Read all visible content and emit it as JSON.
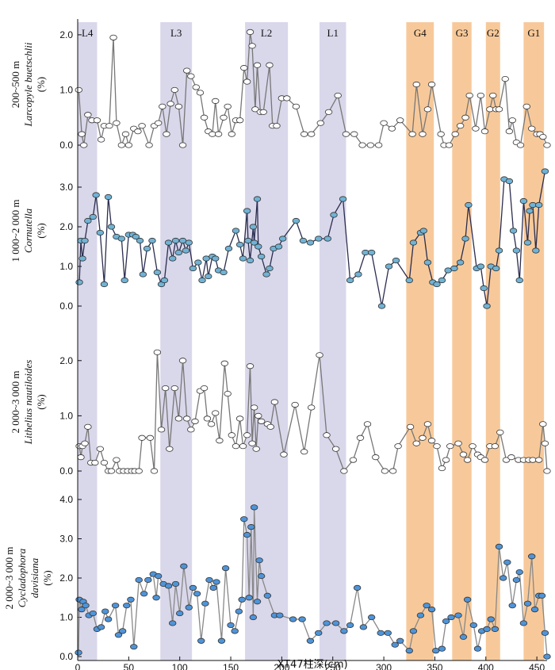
{
  "bands": [
    {
      "label": "L4",
      "x": [
        0,
        19
      ],
      "color": "#d9d7ea"
    },
    {
      "label": "L3",
      "x": [
        81,
        112
      ],
      "color": "#d9d7ea"
    },
    {
      "label": "L2",
      "x": [
        164,
        206
      ],
      "color": "#d9d7ea"
    },
    {
      "label": "L1",
      "x": [
        237,
        263
      ],
      "color": "#d9d7ea"
    },
    {
      "label": "G4",
      "x": [
        322,
        349
      ],
      "color": "#f7c99a"
    },
    {
      "label": "G3",
      "x": [
        367,
        386
      ],
      "color": "#f7c99a"
    },
    {
      "label": "G2",
      "x": [
        400,
        414
      ],
      "color": "#f7c99a"
    },
    {
      "label": "G1",
      "x": [
        437,
        457
      ],
      "color": "#f7c99a"
    }
  ],
  "chart_data": [
    {
      "type": "line",
      "ylabel": [
        "200~500 m",
        "Larcopyle buetschlii",
        "(%)"
      ],
      "xlim": [
        0,
        460
      ],
      "ylim": [
        -0.1,
        2.3
      ],
      "yticks": [
        {
          "value": 0,
          "label": "0.0"
        },
        {
          "value": 1,
          "label": "1.0"
        },
        {
          "value": 2,
          "label": "2.0"
        }
      ],
      "x": [
        1,
        4,
        6,
        10,
        14,
        19,
        23,
        26,
        31,
        35,
        38,
        43,
        47,
        50,
        55,
        59,
        63,
        70,
        75,
        79,
        83,
        87,
        91,
        95,
        99,
        103,
        107,
        111,
        116,
        120,
        124,
        128,
        132,
        135,
        138,
        143,
        147,
        151,
        155,
        159,
        163,
        166,
        169,
        171,
        174,
        176,
        179,
        182,
        188,
        191,
        195,
        200,
        205,
        214,
        222,
        229,
        238,
        246,
        255,
        263,
        271,
        279,
        287,
        295,
        300,
        308,
        316,
        328,
        332,
        338,
        343,
        347,
        356,
        359,
        364,
        370,
        375,
        380,
        384,
        390,
        395,
        399,
        404,
        407,
        410,
        413,
        419,
        423,
        426,
        430,
        434,
        440,
        445,
        450,
        453,
        456,
        460
      ],
      "series": [
        {
          "color": "#777777",
          "marker": "#ffffff",
          "values": [
            1.0,
            0.2,
            0,
            0.55,
            0.45,
            0.45,
            0.1,
            0.35,
            0.35,
            1.95,
            0.4,
            0,
            0.2,
            0,
            0.3,
            0.25,
            0.35,
            0,
            0.35,
            0.4,
            0.7,
            0.2,
            0.75,
            1.0,
            0.7,
            0,
            1.35,
            1.25,
            1.05,
            0.95,
            0.5,
            0.25,
            0.2,
            0.8,
            0.2,
            0.5,
            0.7,
            0.2,
            0.45,
            0.45,
            1.4,
            1.15,
            2.05,
            1.8,
            0.65,
            1.45,
            0.6,
            0.6,
            1.45,
            0.35,
            0.35,
            0.85,
            0.85,
            0.7,
            0.2,
            0.2,
            0.4,
            0.6,
            0.9,
            0.2,
            0.2,
            0,
            0,
            0,
            0.4,
            0.3,
            0.45,
            0.2,
            1.1,
            0.2,
            0.65,
            1.1,
            0.2,
            0,
            0,
            0.2,
            0.35,
            0.5,
            0.9,
            0.3,
            0.9,
            0.25,
            0.65,
            0.9,
            0.65,
            0.65,
            1.2,
            0.25,
            0.45,
            0.05,
            0,
            0.7,
            0.3,
            0.2,
            0.2,
            0.15,
            0
          ]
        }
      ]
    },
    {
      "type": "line",
      "ylabel": [
        "1 000~2 000 m",
        "Cornutella",
        "(%)"
      ],
      "xlim": [
        0,
        460
      ],
      "ylim": [
        -0.1,
        3.9
      ],
      "yticks": [
        {
          "value": 0,
          "label": "0.0"
        },
        {
          "value": 1,
          "label": "1.0"
        },
        {
          "value": 2,
          "label": "2.0"
        },
        {
          "value": 3,
          "label": "3.0"
        }
      ],
      "x": [
        1.6,
        3.1,
        4.7,
        7,
        10,
        15,
        18,
        22,
        26,
        30,
        33,
        38,
        43,
        46,
        50,
        54,
        57,
        61,
        64,
        68,
        73,
        78,
        82,
        85,
        89,
        93,
        96,
        99,
        103,
        106,
        109,
        113,
        118,
        122,
        126,
        128,
        132,
        135,
        138,
        143,
        148,
        155,
        159,
        162,
        166,
        167,
        169,
        172,
        173,
        176,
        177,
        180,
        185,
        188,
        192,
        197,
        201,
        214,
        221,
        228,
        236,
        245,
        251,
        260,
        267,
        275,
        282,
        288,
        298,
        305,
        312,
        325,
        329,
        336,
        339,
        343,
        348,
        352,
        357,
        363,
        369,
        375,
        380,
        383,
        391,
        395,
        398,
        401,
        405,
        410,
        413,
        418,
        423,
        427,
        430,
        433,
        437,
        441,
        443,
        446,
        449,
        452,
        458
      ],
      "series": [
        {
          "color": "#2b2d4f",
          "marker": "#6fb3d6",
          "values": [
            0.6,
            1.65,
            1.2,
            1.65,
            2.15,
            2.25,
            2.8,
            1.85,
            0.55,
            2.75,
            2.0,
            1.75,
            1.7,
            0.65,
            1.8,
            1.8,
            1.75,
            1.65,
            0.8,
            1.45,
            1.65,
            0.85,
            0.55,
            0.65,
            1.6,
            1.2,
            1.65,
            1.35,
            1.65,
            1.4,
            1.6,
            0.95,
            1.1,
            0.65,
            1.2,
            0.75,
            1.25,
            1.2,
            0.9,
            0.85,
            1.45,
            1.9,
            1.55,
            1.2,
            2.4,
            1.65,
            1.15,
            2.0,
            1.6,
            2.7,
            1.5,
            1.25,
            0.8,
            0.95,
            1.45,
            1.5,
            1.7,
            2.15,
            1.65,
            1.6,
            1.7,
            1.7,
            2.3,
            2.7,
            0.65,
            0.8,
            1.35,
            1.35,
            0.0,
            1.0,
            1.15,
            0.65,
            1.6,
            1.85,
            1.9,
            1.1,
            0.6,
            0.55,
            0.65,
            0.9,
            0.95,
            1.1,
            1.7,
            2.55,
            0.95,
            1.0,
            0.45,
            0.0,
            1.0,
            0.95,
            1.4,
            3.2,
            3.15,
            1.9,
            1.4,
            0.65,
            2.65,
            1.6,
            2.4,
            2.55,
            1.4,
            2.55,
            3.4
          ]
        }
      ]
    },
    {
      "type": "line",
      "ylabel": [
        "2 000~3 000 m",
        "Lithelius nautiloides",
        "(%)"
      ],
      "xlim": [
        0,
        460
      ],
      "ylim": [
        -0.1,
        2.6
      ],
      "yticks": [
        {
          "value": 0,
          "label": "0.0"
        },
        {
          "value": 1,
          "label": "1.0"
        },
        {
          "value": 2,
          "label": "2.0"
        }
      ],
      "x": [
        1.6,
        3.1,
        4.7,
        7,
        10,
        13,
        17,
        22,
        26,
        30,
        33,
        38,
        41,
        45,
        49,
        53,
        56,
        60,
        63,
        71,
        75,
        78,
        82,
        86,
        90,
        95,
        99,
        103,
        107,
        111,
        115,
        120,
        124,
        127,
        131,
        135,
        139,
        144,
        147,
        151,
        155,
        159,
        162,
        166,
        169,
        171,
        173,
        175,
        177,
        180,
        186,
        189,
        193,
        202,
        213,
        222,
        229,
        237,
        244,
        253,
        261,
        270,
        277,
        284,
        292,
        301,
        309,
        314,
        326,
        332,
        338,
        343,
        347,
        352,
        357,
        361,
        365,
        373,
        378,
        382,
        387,
        392,
        395,
        399,
        404,
        409,
        414,
        420,
        425,
        432,
        437,
        442,
        446,
        452,
        456,
        458,
        460
      ],
      "series": [
        {
          "color": "#777777",
          "marker": "#ffffff",
          "values": [
            0.45,
            0.25,
            0.45,
            0.5,
            0.8,
            0.15,
            0.15,
            0.4,
            0.15,
            0,
            0,
            0.2,
            0,
            0,
            0,
            0,
            0,
            0,
            0.6,
            0.6,
            0,
            2.15,
            0.75,
            1.5,
            0.4,
            1.5,
            0.95,
            2.0,
            0.95,
            0.75,
            0.9,
            1.45,
            1.5,
            0.95,
            0.85,
            1.05,
            0.55,
            1.95,
            1.4,
            0.65,
            0.45,
            0.95,
            0.45,
            0.65,
            1.9,
            0.5,
            1.15,
            0.4,
            1.0,
            0.9,
            0.85,
            0.8,
            1.25,
            0.3,
            1.2,
            0.35,
            1.15,
            2.1,
            0.65,
            0.4,
            0,
            0.2,
            0.6,
            0.85,
            0.25,
            0,
            0,
            0.45,
            0.8,
            0.5,
            0.6,
            0.85,
            0.55,
            0.45,
            0.05,
            0.2,
            0.45,
            0.5,
            0.3,
            0.2,
            0.45,
            0.3,
            0.25,
            0.2,
            0.45,
            0.45,
            0.7,
            0.2,
            0.25,
            0.2,
            0.2,
            0.2,
            0.2,
            0.2,
            0.85,
            0.5,
            0
          ]
        }
      ]
    },
    {
      "type": "line",
      "ylabel": [
        "2 000~3 000 m",
        "Cycladophora",
        "davisiana",
        "(%)"
      ],
      "xlim": [
        0,
        460
      ],
      "ylim": [
        -0.1,
        4.1
      ],
      "yticks": [
        {
          "value": 0,
          "label": "0.0"
        },
        {
          "value": 1,
          "label": "1.0"
        },
        {
          "value": 2,
          "label": "2.0"
        },
        {
          "value": 3,
          "label": "3.0"
        },
        {
          "value": 4,
          "label": "4.0"
        }
      ],
      "xticks": [
        0,
        50,
        100,
        150,
        200,
        250,
        300,
        350,
        400,
        450
      ],
      "xlabel": "XT47柱深(cm)",
      "x": [
        0.8,
        1.6,
        3.9,
        5.4,
        7.8,
        11,
        15,
        19,
        23,
        27,
        30,
        37,
        40,
        44,
        48,
        52,
        55,
        60,
        65,
        69,
        74,
        77,
        79,
        84,
        89,
        93,
        96,
        100,
        104,
        109,
        113,
        117,
        121,
        125,
        129,
        133,
        136,
        141,
        145,
        150,
        154,
        158,
        161,
        163,
        166,
        168,
        170,
        172,
        173,
        176,
        178,
        180,
        186,
        193,
        198,
        211,
        220,
        228,
        236,
        244,
        253,
        261,
        267,
        274,
        280,
        288,
        297,
        304,
        311,
        316,
        325,
        329,
        336,
        342,
        347,
        351,
        357,
        361,
        366,
        373,
        378,
        382,
        388,
        392,
        396,
        401,
        405,
        409,
        413,
        417,
        421,
        426,
        430,
        433,
        437,
        441,
        445,
        448,
        452,
        455,
        458,
        460
      ],
      "series": [
        {
          "color": "#888888",
          "marker": "#4f94d8",
          "values": [
            0.1,
            1.45,
            1.2,
            1.4,
            1.3,
            1.05,
            1.1,
            0.7,
            0.75,
            1.15,
            0.95,
            1.3,
            0.55,
            0.65,
            1.3,
            1.45,
            0.25,
            1.95,
            1.6,
            1.95,
            2.1,
            1.5,
            2.05,
            1.85,
            1.8,
            0.85,
            1.85,
            1.1,
            2.3,
            1.25,
            1.75,
            1.6,
            0.4,
            1.35,
            1.95,
            1.75,
            1.9,
            0.4,
            2.25,
            0.8,
            0.65,
            1.15,
            1.45,
            3.5,
            3.1,
            1.5,
            3.3,
            1.0,
            3.8,
            1.4,
            2.45,
            2.05,
            1.55,
            1.05,
            1.05,
            0.95,
            0.95,
            0.4,
            0.6,
            0.85,
            0.85,
            0.65,
            0.8,
            1.75,
            0.75,
            1.0,
            0.6,
            0.6,
            0.3,
            0.4,
            0.15,
            0.65,
            1.05,
            1.3,
            1.2,
            0.15,
            0.2,
            0.9,
            1.0,
            1.05,
            0.5,
            1.45,
            0.8,
            0.2,
            0.65,
            0.7,
            0.95,
            0.7,
            2.8,
            2.0,
            2.4,
            1.3,
            1.95,
            2.15,
            0.85,
            1.35,
            2.55,
            1.2,
            1.55,
            1.55,
            0.6,
            0.0
          ]
        }
      ]
    }
  ]
}
